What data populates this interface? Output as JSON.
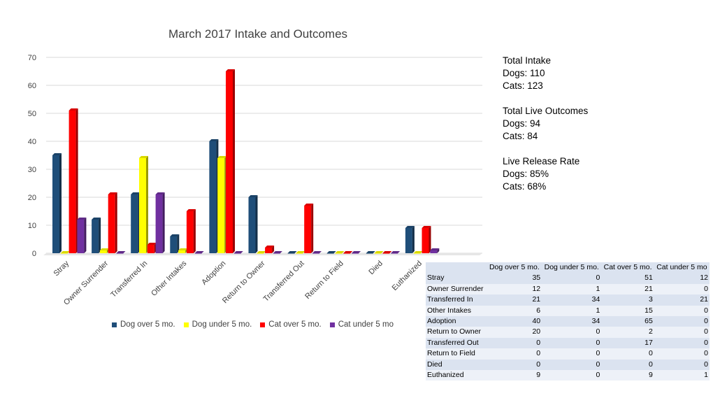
{
  "chart_data": {
    "type": "bar",
    "title": "March  2017 Intake and Outcomes",
    "categories": [
      "Stray",
      "Owner Surrender",
      "Transferred In",
      "Other Intakes",
      "Adoption",
      "Return to Owner",
      "Transferred Out",
      "Return to Field",
      "Died",
      "Euthanized"
    ],
    "series": [
      {
        "name": "Dog over 5 mo.",
        "color": "#1f4e79",
        "values": [
          35,
          12,
          21,
          6,
          40,
          20,
          0,
          0,
          0,
          9
        ]
      },
      {
        "name": "Dog under 5 mo.",
        "color": "#ffff00",
        "values": [
          0,
          1,
          34,
          1,
          34,
          0,
          0,
          0,
          0,
          0
        ]
      },
      {
        "name": "Cat over 5 mo.",
        "color": "#ff0000",
        "values": [
          51,
          21,
          3,
          15,
          65,
          2,
          17,
          0,
          0,
          9
        ]
      },
      {
        "name": "Cat under 5 mo",
        "color": "#7030a0",
        "values": [
          12,
          0,
          21,
          0,
          0,
          0,
          0,
          0,
          0,
          1
        ]
      }
    ],
    "ylim": [
      0,
      70
    ],
    "yticks": [
      0,
      10,
      20,
      30,
      40,
      50,
      60,
      70
    ],
    "grid": true,
    "legend": "bottom"
  },
  "stats": {
    "intake_title": "Total Intake",
    "intake_dogs": "Dogs: 110",
    "intake_cats": "Cats: 123",
    "outcomes_title": "Total Live Outcomes",
    "outcomes_dogs": "Dogs: 94",
    "outcomes_cats": "Cats: 84",
    "release_title": "Live Release Rate",
    "release_dogs": "Dogs: 85%",
    "release_cats": "Cats: 68%"
  },
  "table": {
    "headers": [
      "",
      "Dog over 5 mo.",
      "Dog under 5 mo.",
      "Cat over 5 mo.",
      "Cat under 5 mo"
    ],
    "rows": [
      [
        "Stray",
        "35",
        "0",
        "51",
        "12"
      ],
      [
        "Owner Surrender",
        "12",
        "1",
        "21",
        "0"
      ],
      [
        "Transferred In",
        "21",
        "34",
        "3",
        "21"
      ],
      [
        "Other Intakes",
        "6",
        "1",
        "15",
        "0"
      ],
      [
        "Adoption",
        "40",
        "34",
        "65",
        "0"
      ],
      [
        "Return to Owner",
        "20",
        "0",
        "2",
        "0"
      ],
      [
        "Transferred Out",
        "0",
        "0",
        "17",
        "0"
      ],
      [
        "Return to Field",
        "0",
        "0",
        "0",
        "0"
      ],
      [
        "Died",
        "0",
        "0",
        "0",
        "0"
      ],
      [
        "Euthanized",
        "9",
        "0",
        "9",
        "1"
      ]
    ]
  }
}
